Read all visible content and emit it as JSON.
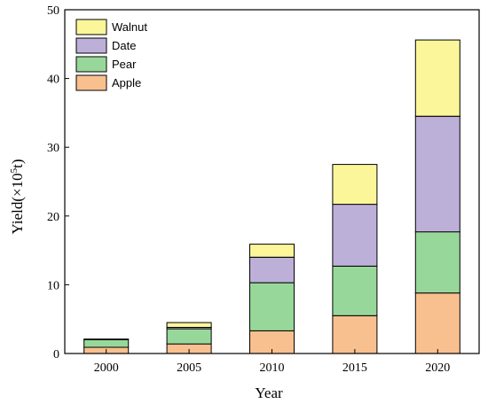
{
  "chart_data": {
    "type": "bar",
    "stacked": true,
    "categories": [
      "2000",
      "2005",
      "2010",
      "2015",
      "2020"
    ],
    "series": [
      {
        "name": "Apple",
        "color": "#f9c08f",
        "values": [
          0.9,
          1.4,
          3.3,
          5.5,
          8.8
        ]
      },
      {
        "name": "Pear",
        "color": "#97d89a",
        "values": [
          1.1,
          2.2,
          7.0,
          7.2,
          8.9
        ]
      },
      {
        "name": "Date",
        "color": "#bdb0d8",
        "values": [
          0.0,
          0.2,
          3.7,
          9.0,
          16.8
        ]
      },
      {
        "name": "Walnut",
        "color": "#fcf69a",
        "values": [
          0.1,
          0.7,
          1.9,
          5.8,
          11.1
        ]
      }
    ],
    "xlabel": "Year",
    "ylabel_main": "Yield(×10",
    "ylabel_sup": "5",
    "ylabel_tail": "t)",
    "ylim": [
      0,
      50
    ],
    "yticks": [
      0,
      10,
      20,
      30,
      40,
      50
    ],
    "grid": false,
    "legend_position": "top-left",
    "legend_order": [
      "Walnut",
      "Date",
      "Pear",
      "Apple"
    ]
  }
}
